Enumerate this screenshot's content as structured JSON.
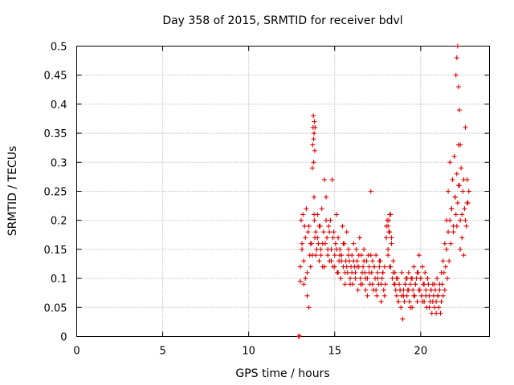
{
  "chart_data": {
    "type": "scatter",
    "title": "Day 358 of 2015, SRMTID for receiver bdvl",
    "xlabel": "GPS time / hours",
    "ylabel": "SRMTID / TECUs",
    "xlim": [
      0,
      24
    ],
    "ylim": [
      0,
      0.5
    ],
    "xticks": [
      0,
      5,
      10,
      15,
      20
    ],
    "xtick_labels": [
      "0",
      "5",
      "10",
      "15",
      "20"
    ],
    "yticks": [
      0,
      0.05,
      0.1,
      0.15,
      0.2,
      0.25,
      0.3,
      0.35,
      0.4,
      0.45,
      0.5
    ],
    "ytick_labels": [
      "0",
      "0.05",
      "0.1",
      "0.15",
      "0.2",
      "0.25",
      "0.3",
      "0.35",
      "0.4",
      "0.45",
      "0.5"
    ],
    "grid": true,
    "marker": "+",
    "color": "#e00000",
    "series": [
      {
        "name": "SRMTID",
        "x": [
          12.9,
          12.95,
          13.0,
          13.05,
          13.1,
          13.15,
          13.2,
          13.25,
          13.3,
          13.35,
          13.4,
          13.45,
          13.5,
          13.55,
          13.6,
          13.65,
          13.7,
          13.72,
          13.74,
          13.76,
          13.78,
          13.8,
          13.82,
          13.85,
          13.9,
          13.95,
          14.0,
          14.05,
          14.1,
          14.15,
          14.2,
          14.25,
          14.3,
          14.35,
          14.4,
          14.45,
          14.5,
          14.55,
          14.6,
          14.65,
          14.7,
          14.75,
          14.8,
          14.85,
          14.9,
          14.95,
          15.0,
          15.05,
          15.1,
          15.15,
          15.2,
          15.25,
          15.3,
          15.35,
          15.4,
          15.45,
          15.5,
          15.55,
          15.6,
          15.65,
          15.7,
          15.75,
          15.8,
          15.85,
          15.9,
          15.95,
          16.0,
          16.05,
          16.1,
          16.15,
          16.2,
          16.25,
          16.3,
          16.35,
          16.4,
          16.45,
          16.5,
          16.55,
          16.6,
          16.65,
          16.7,
          16.75,
          16.8,
          16.85,
          16.9,
          16.95,
          17.0,
          17.05,
          17.1,
          17.15,
          17.2,
          17.25,
          17.3,
          17.35,
          17.4,
          17.45,
          17.5,
          17.55,
          17.6,
          17.65,
          17.7,
          17.75,
          17.8,
          17.85,
          17.9,
          17.95,
          18.0,
          18.05,
          18.1,
          18.15,
          18.2,
          18.25,
          18.3,
          18.35,
          18.4,
          18.45,
          18.5,
          18.55,
          18.6,
          18.65,
          18.7,
          18.75,
          18.8,
          18.85,
          18.9,
          18.95,
          19.0,
          19.05,
          19.1,
          19.15,
          19.2,
          19.25,
          19.3,
          19.35,
          19.4,
          19.45,
          19.5,
          19.55,
          19.6,
          19.65,
          19.7,
          19.75,
          19.8,
          19.85,
          19.9,
          19.95,
          20.0,
          20.05,
          20.1,
          20.15,
          20.2,
          20.25,
          20.3,
          20.35,
          20.4,
          20.45,
          20.5,
          20.55,
          20.6,
          20.65,
          20.7,
          20.75,
          20.8,
          20.85,
          20.9,
          20.95,
          21.0,
          21.05,
          21.1,
          21.15,
          21.2,
          21.25,
          21.3,
          21.35,
          21.4,
          21.45,
          21.5,
          21.55,
          21.6,
          21.65,
          21.7,
          21.75,
          21.8,
          21.85,
          21.9,
          21.95,
          22.0,
          22.05,
          22.1,
          22.15,
          22.2,
          22.25,
          22.3,
          22.35,
          22.4,
          22.45,
          22.5,
          22.55,
          22.6,
          22.65,
          22.7,
          22.75,
          22.8,
          13.0,
          13.1,
          13.2,
          13.3,
          13.4,
          13.5,
          13.6,
          13.7,
          13.8,
          13.9,
          14.0,
          14.1,
          14.2,
          14.3,
          14.4,
          14.5,
          14.6,
          14.7,
          14.8,
          14.9,
          15.0,
          15.1,
          15.2,
          15.3,
          15.4,
          15.5,
          15.6,
          15.7,
          15.8,
          15.9,
          16.0,
          16.1,
          16.2,
          16.3,
          16.4,
          16.5,
          16.6,
          16.7,
          16.8,
          16.9,
          17.0,
          17.1,
          17.2,
          17.3,
          17.4,
          17.5,
          17.6,
          17.7,
          17.8,
          17.9,
          18.0,
          18.1,
          18.2,
          18.3,
          18.4,
          18.5,
          18.6,
          18.7,
          18.8,
          18.9,
          19.0,
          19.1,
          19.2,
          19.3,
          19.4,
          19.5,
          19.6,
          19.7,
          19.8,
          19.9,
          20.0,
          20.1,
          20.2,
          20.3,
          20.4,
          20.5,
          20.6,
          20.7,
          20.8,
          20.9,
          21.0,
          21.1,
          21.2,
          21.3,
          21.4,
          21.5,
          21.6,
          21.7,
          21.8,
          21.9,
          22.0,
          22.1,
          22.2,
          22.3,
          22.4,
          22.5,
          22.6,
          22.7,
          13.78,
          13.8,
          13.82,
          13.84,
          13.86,
          18.1,
          18.15,
          18.2,
          18.25,
          22.05,
          22.1,
          22.15,
          22.2,
          22.25,
          22.3
        ],
        "y": [
          0.0,
          0.001,
          0.095,
          0.2,
          0.16,
          0.21,
          0.13,
          0.19,
          0.1,
          0.22,
          0.07,
          0.18,
          0.05,
          0.14,
          0.12,
          0.16,
          0.29,
          0.33,
          0.36,
          0.38,
          0.3,
          0.24,
          0.2,
          0.17,
          0.14,
          0.15,
          0.21,
          0.16,
          0.13,
          0.19,
          0.15,
          0.22,
          0.12,
          0.18,
          0.27,
          0.16,
          0.24,
          0.17,
          0.14,
          0.19,
          0.13,
          0.2,
          0.15,
          0.27,
          0.12,
          0.18,
          0.14,
          0.16,
          0.21,
          0.11,
          0.17,
          0.13,
          0.15,
          0.1,
          0.14,
          0.19,
          0.12,
          0.16,
          0.09,
          0.13,
          0.18,
          0.11,
          0.15,
          0.13,
          0.1,
          0.12,
          0.14,
          0.09,
          0.16,
          0.12,
          0.11,
          0.15,
          0.13,
          0.08,
          0.12,
          0.17,
          0.1,
          0.14,
          0.09,
          0.12,
          0.15,
          0.11,
          0.08,
          0.13,
          0.1,
          0.14,
          0.12,
          0.09,
          0.25,
          0.11,
          0.13,
          0.08,
          0.12,
          0.1,
          0.14,
          0.07,
          0.11,
          0.09,
          0.12,
          0.13,
          0.06,
          0.1,
          0.11,
          0.08,
          0.12,
          0.09,
          0.17,
          0.2,
          0.15,
          0.18,
          0.21,
          0.12,
          0.16,
          0.1,
          0.13,
          0.09,
          0.11,
          0.08,
          0.07,
          0.1,
          0.06,
          0.09,
          0.08,
          0.05,
          0.07,
          0.03,
          0.08,
          0.06,
          0.09,
          0.1,
          0.07,
          0.08,
          0.11,
          0.06,
          0.09,
          0.1,
          0.05,
          0.08,
          0.12,
          0.07,
          0.09,
          0.1,
          0.06,
          0.11,
          0.14,
          0.08,
          0.1,
          0.07,
          0.12,
          0.09,
          0.06,
          0.11,
          0.08,
          0.05,
          0.1,
          0.09,
          0.07,
          0.06,
          0.08,
          0.04,
          0.09,
          0.07,
          0.05,
          0.08,
          0.06,
          0.1,
          0.07,
          0.05,
          0.08,
          0.04,
          0.06,
          0.09,
          0.07,
          0.11,
          0.08,
          0.12,
          0.15,
          0.1,
          0.18,
          0.13,
          0.2,
          0.16,
          0.22,
          0.27,
          0.19,
          0.31,
          0.24,
          0.21,
          0.28,
          0.23,
          0.33,
          0.26,
          0.2,
          0.29,
          0.17,
          0.25,
          0.14,
          0.22,
          0.36,
          0.19,
          0.27,
          0.23,
          0.25,
          0.12,
          0.15,
          0.09,
          0.17,
          0.11,
          0.19,
          0.16,
          0.14,
          0.21,
          0.18,
          0.17,
          0.19,
          0.14,
          0.16,
          0.12,
          0.2,
          0.15,
          0.18,
          0.13,
          0.17,
          0.12,
          0.15,
          0.11,
          0.14,
          0.13,
          0.16,
          0.11,
          0.12,
          0.14,
          0.09,
          0.11,
          0.13,
          0.1,
          0.12,
          0.14,
          0.09,
          0.11,
          0.13,
          0.1,
          0.07,
          0.11,
          0.14,
          0.09,
          0.12,
          0.08,
          0.1,
          0.13,
          0.09,
          0.11,
          0.07,
          0.19,
          0.14,
          0.12,
          0.17,
          0.11,
          0.09,
          0.1,
          0.06,
          0.08,
          0.11,
          0.07,
          0.09,
          0.1,
          0.08,
          0.05,
          0.1,
          0.07,
          0.09,
          0.11,
          0.08,
          0.1,
          0.06,
          0.09,
          0.07,
          0.1,
          0.05,
          0.08,
          0.06,
          0.09,
          0.04,
          0.07,
          0.09,
          0.11,
          0.13,
          0.16,
          0.2,
          0.25,
          0.3,
          0.22,
          0.18,
          0.24,
          0.19,
          0.26,
          0.15,
          0.21,
          0.27,
          0.2,
          0.23,
          0.34,
          0.35,
          0.37,
          0.32,
          0.36,
          0.19,
          0.2,
          0.18,
          0.21,
          0.45,
          0.48,
          0.5,
          0.43,
          0.39,
          0.33
        ]
      }
    ]
  }
}
